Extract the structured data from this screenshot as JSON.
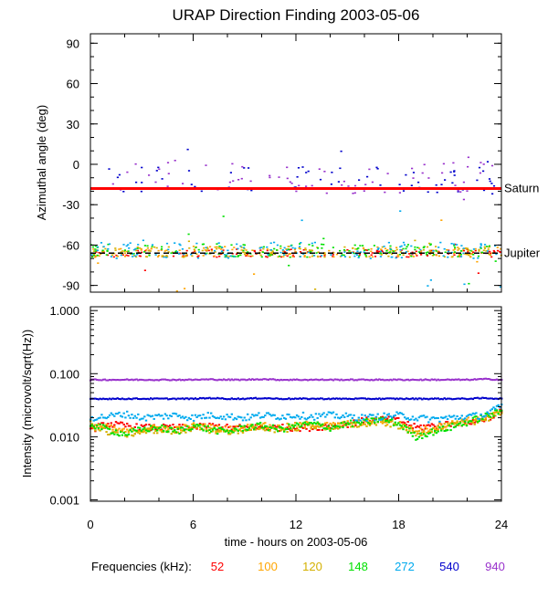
{
  "chart_data": [
    {
      "type": "scatter",
      "title": "URAP Direction Finding  2003-05-06",
      "ylabel": "Azimuthal angle (deg)",
      "xlim": [
        0,
        24
      ],
      "ylim": [
        -95,
        97
      ],
      "y_ticks": [
        "90",
        "60",
        "30",
        "0",
        "-30",
        "-60",
        "-90"
      ],
      "y_tick_values": [
        90,
        60,
        30,
        0,
        -30,
        -60,
        -90
      ],
      "reference_lines": [
        {
          "label": "Saturn",
          "y": -18,
          "color": "#ff0000"
        },
        {
          "label": "Jupiter",
          "y": -66,
          "color": "#000000"
        }
      ],
      "series": [
        {
          "name": "52",
          "color": "#ff0000",
          "level": -66,
          "spread": 3
        },
        {
          "name": "100",
          "color": "#ffa500",
          "level": -65,
          "spread": 4
        },
        {
          "name": "120",
          "color": "#d4b000",
          "level": -65,
          "spread": 4
        },
        {
          "name": "148",
          "color": "#00e000",
          "level": -64,
          "spread": 5
        },
        {
          "name": "272",
          "color": "#00aaee",
          "level": -64,
          "spread": 6
        },
        {
          "name": "540",
          "color": "#0000cc",
          "level": -12,
          "spread": 10
        },
        {
          "name": "940",
          "color": "#9932cc",
          "level": -10,
          "spread": 12
        }
      ]
    },
    {
      "type": "line",
      "ylabel": "Intensity (microvolt/sqrt(Hz))",
      "xlabel": "time - hours on 2003-05-06",
      "xlim": [
        0,
        24
      ],
      "ylim": [
        0.00095,
        1.15
      ],
      "y_scale": "log",
      "x_ticks": [
        "0",
        "6",
        "12",
        "18",
        "24"
      ],
      "x_tick_values": [
        0,
        6,
        12,
        18,
        24
      ],
      "y_ticks": [
        "1.000",
        "0.100",
        "0.010",
        "0.001"
      ],
      "y_tick_values": [
        1.0,
        0.1,
        0.01,
        0.001
      ],
      "series": [
        {
          "name": "52",
          "color": "#ff0000",
          "x": [
            0,
            1,
            2,
            3,
            4,
            5,
            6,
            7,
            8,
            9,
            10,
            11,
            12,
            13,
            14,
            15,
            16,
            17,
            18,
            19,
            20,
            21,
            22,
            23,
            24
          ],
          "y": [
            0.013,
            0.016,
            0.015,
            0.014,
            0.014,
            0.014,
            0.014,
            0.015,
            0.014,
            0.014,
            0.014,
            0.014,
            0.014,
            0.014,
            0.015,
            0.016,
            0.018,
            0.019,
            0.018,
            0.014,
            0.015,
            0.016,
            0.017,
            0.019,
            0.025
          ]
        },
        {
          "name": "100",
          "color": "#ffa500",
          "x": [
            0,
            1,
            2,
            3,
            4,
            5,
            6,
            7,
            8,
            9,
            10,
            11,
            12,
            13,
            14,
            15,
            16,
            17,
            18,
            19,
            20,
            21,
            22,
            23,
            24
          ],
          "y": [
            0.016,
            0.014,
            0.012,
            0.013,
            0.014,
            0.013,
            0.015,
            0.014,
            0.013,
            0.014,
            0.015,
            0.014,
            0.015,
            0.016,
            0.015,
            0.016,
            0.017,
            0.018,
            0.016,
            0.012,
            0.014,
            0.016,
            0.018,
            0.02,
            0.024
          ]
        },
        {
          "name": "120",
          "color": "#d4b000",
          "x": [
            0,
            1,
            2,
            3,
            4,
            5,
            6,
            7,
            8,
            9,
            10,
            11,
            12,
            13,
            14,
            15,
            16,
            17,
            18,
            19,
            20,
            21,
            22,
            23,
            24
          ],
          "y": [
            0.015,
            0.012,
            0.011,
            0.012,
            0.013,
            0.012,
            0.014,
            0.013,
            0.012,
            0.013,
            0.014,
            0.013,
            0.014,
            0.015,
            0.014,
            0.015,
            0.016,
            0.017,
            0.015,
            0.011,
            0.013,
            0.015,
            0.017,
            0.019,
            0.023
          ]
        },
        {
          "name": "148",
          "color": "#00e000",
          "x": [
            0,
            1,
            2,
            3,
            4,
            5,
            6,
            7,
            8,
            9,
            10,
            11,
            12,
            13,
            14,
            15,
            16,
            17,
            18,
            19,
            20,
            21,
            22,
            23,
            24
          ],
          "y": [
            0.016,
            0.013,
            0.011,
            0.013,
            0.014,
            0.012,
            0.015,
            0.013,
            0.012,
            0.014,
            0.015,
            0.013,
            0.015,
            0.016,
            0.014,
            0.016,
            0.017,
            0.019,
            0.016,
            0.01,
            0.012,
            0.014,
            0.017,
            0.021,
            0.025
          ]
        },
        {
          "name": "272",
          "color": "#00aaee",
          "x": [
            0,
            1,
            2,
            3,
            4,
            5,
            6,
            7,
            8,
            9,
            10,
            11,
            12,
            13,
            14,
            15,
            16,
            17,
            18,
            19,
            20,
            21,
            22,
            23,
            24
          ],
          "y": [
            0.02,
            0.021,
            0.023,
            0.02,
            0.021,
            0.022,
            0.02,
            0.022,
            0.021,
            0.02,
            0.022,
            0.021,
            0.022,
            0.021,
            0.022,
            0.021,
            0.02,
            0.021,
            0.022,
            0.02,
            0.019,
            0.02,
            0.021,
            0.022,
            0.03
          ]
        },
        {
          "name": "540",
          "color": "#0000cc",
          "x": [
            0,
            1,
            2,
            3,
            4,
            5,
            6,
            7,
            8,
            9,
            10,
            11,
            12,
            13,
            14,
            15,
            16,
            17,
            18,
            19,
            20,
            21,
            22,
            23,
            24
          ],
          "y": [
            0.04,
            0.04,
            0.04,
            0.04,
            0.04,
            0.04,
            0.04,
            0.041,
            0.04,
            0.04,
            0.041,
            0.04,
            0.04,
            0.04,
            0.04,
            0.04,
            0.04,
            0.04,
            0.04,
            0.04,
            0.04,
            0.04,
            0.04,
            0.041,
            0.04
          ]
        },
        {
          "name": "940",
          "color": "#9932cc",
          "x": [
            0,
            1,
            2,
            3,
            4,
            5,
            6,
            7,
            8,
            9,
            10,
            11,
            12,
            13,
            14,
            15,
            16,
            17,
            18,
            19,
            20,
            21,
            22,
            23,
            24
          ],
          "y": [
            0.08,
            0.08,
            0.08,
            0.08,
            0.08,
            0.08,
            0.08,
            0.081,
            0.08,
            0.08,
            0.082,
            0.08,
            0.08,
            0.08,
            0.08,
            0.08,
            0.08,
            0.08,
            0.08,
            0.08,
            0.08,
            0.08,
            0.08,
            0.082,
            0.08
          ]
        }
      ]
    }
  ],
  "legend": {
    "label": "Frequencies (kHz):",
    "items": [
      {
        "text": "52",
        "color": "#ff0000"
      },
      {
        "text": "100",
        "color": "#ffa500"
      },
      {
        "text": "120",
        "color": "#d4b000"
      },
      {
        "text": "148",
        "color": "#00e000"
      },
      {
        "text": "272",
        "color": "#00aaee"
      },
      {
        "text": "540",
        "color": "#0000cc"
      },
      {
        "text": "940",
        "color": "#9932cc"
      }
    ]
  }
}
